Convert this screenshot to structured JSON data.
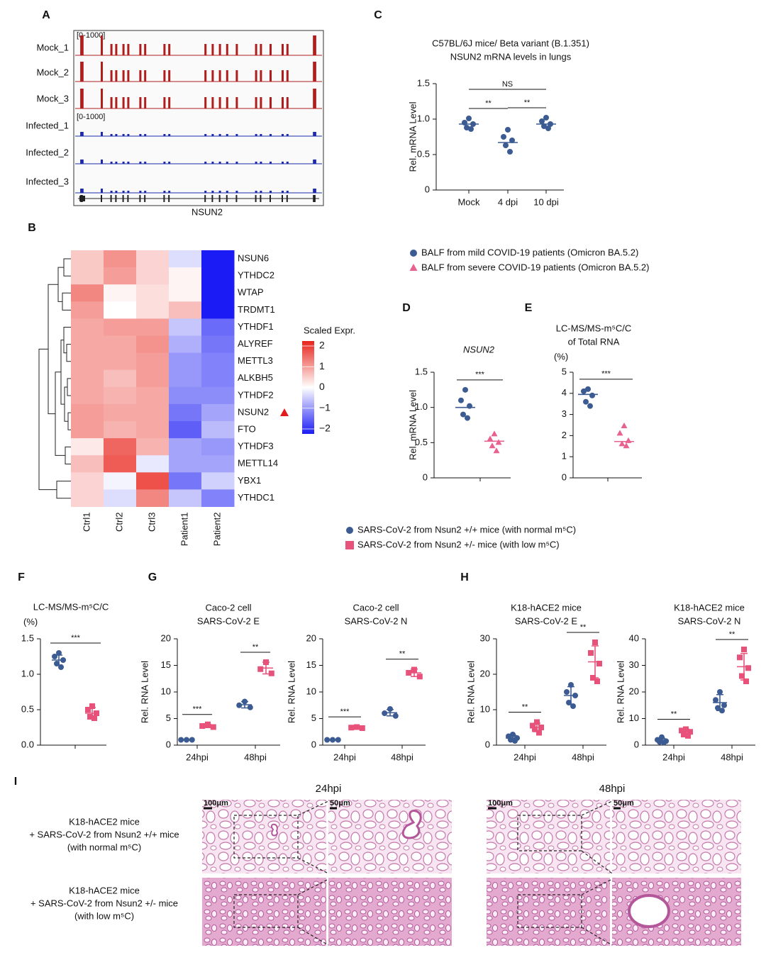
{
  "panel_labels": [
    "A",
    "B",
    "C",
    "D",
    "E",
    "F",
    "G",
    "H",
    "I"
  ],
  "tracks": {
    "scale_labels": [
      "[0-1000]",
      "[0-1000]"
    ],
    "samples": [
      "Mock_1",
      "Mock_2",
      "Mock_3",
      "Infected_1",
      "Infected_2",
      "Infected_3"
    ],
    "gene": "NSUN2"
  },
  "chart_data": [
    {
      "type": "heatmap",
      "rows": [
        "NSUN6",
        "YTHDC2",
        "WTAP",
        "TRDMT1",
        "YTHDF1",
        "ALYREF",
        "METTL3",
        "ALKBH5",
        "YTHDF2",
        "NSUN2",
        "FTO",
        "YTHDF3",
        "METTL14",
        "YBX1",
        "YTHDC1"
      ],
      "columns": [
        "Ctrl1",
        "Ctrl2",
        "Ctrl3",
        "Patient1",
        "Patient2"
      ],
      "values": [
        [
          0.5,
          1.0,
          0.4,
          -0.3,
          -2
        ],
        [
          0.5,
          0.9,
          0.4,
          0.1,
          -2
        ],
        [
          1.1,
          0.1,
          0.3,
          0.1,
          -2
        ],
        [
          0.9,
          0.0,
          0.3,
          0.6,
          -2
        ],
        [
          0.8,
          0.9,
          0.9,
          -0.5,
          -1.3
        ],
        [
          0.8,
          0.8,
          1.0,
          -0.7,
          -1.2
        ],
        [
          0.8,
          0.8,
          0.9,
          -0.9,
          -1.1
        ],
        [
          0.8,
          0.6,
          0.9,
          -0.9,
          -1.1
        ],
        [
          0.8,
          0.7,
          0.8,
          -1.0,
          -1.0
        ],
        [
          0.9,
          0.8,
          0.8,
          -1.2,
          -0.8
        ],
        [
          0.9,
          0.7,
          0.8,
          -1.4,
          -0.6
        ],
        [
          0.2,
          1.4,
          0.7,
          -0.8,
          -0.9
        ],
        [
          0.6,
          1.5,
          -0.2,
          -0.8,
          -0.8
        ],
        [
          0.4,
          -0.1,
          1.6,
          -1.2,
          -0.4
        ],
        [
          0.4,
          -0.3,
          1.1,
          -0.5,
          -1.1
        ]
      ],
      "colorbar_title": "Scaled Expr.",
      "clim": [
        -2,
        2
      ],
      "colorbar_ticks": [
        2,
        1,
        0,
        {
          "value": -1,
          "label": "−1"
        },
        {
          "value": -2,
          "label": "−2"
        }
      ]
    },
    {
      "type": "dot",
      "title": [
        "C57BL/6J mice/ Beta variant (B.1.351)",
        "NSUN2 mRNA levels in lungs"
      ],
      "y_label": "Rel. mRNA Level",
      "categories": [
        "Mock",
        "4 dpi",
        "10 dpi"
      ],
      "ylim": [
        0,
        1.5
      ],
      "yticks": [
        0,
        0.5,
        {
          "value": 1,
          "label": "1.0"
        },
        1.5
      ],
      "series": [
        {
          "color": "#3b5b92",
          "marker": "circle",
          "values": [
            [
              1.01,
              0.95,
              0.93,
              0.88,
              0.86
            ],
            [
              0.85,
              0.75,
              0.7,
              0.63,
              0.54
            ],
            [
              1.02,
              0.97,
              0.93,
              0.9,
              0.87
            ]
          ],
          "center_line": [
            0.93,
            0.67,
            0.93
          ]
        }
      ],
      "significance": [
        {
          "label": "**",
          "between": [
            "Mock",
            "4 dpi"
          ]
        },
        {
          "label": "**",
          "between": [
            "4 dpi",
            "10 dpi"
          ]
        },
        {
          "label": "NS",
          "between": [
            "Mock",
            "10 dpi"
          ]
        }
      ]
    },
    {
      "type": "dot",
      "title": [
        "NSUN2"
      ],
      "y_label": "Rel. mRNA Level",
      "ylim": [
        0,
        1.5
      ],
      "yticks": [
        0,
        0.5,
        {
          "value": 1,
          "label": "1.0"
        },
        1.5
      ],
      "series": [
        {
          "color": "#3b5b92",
          "marker": "circle",
          "values": [
            [
              1.25,
              1.1,
              1.02,
              0.9,
              0.85
            ]
          ],
          "center_line": [
            1.0
          ]
        },
        {
          "color": "#e8628f",
          "marker": "triangle",
          "values": [
            [
              0.62,
              0.55,
              0.5,
              0.45,
              0.38
            ]
          ],
          "center_line": [
            0.52
          ]
        }
      ],
      "significance": [
        {
          "label": "***"
        }
      ]
    },
    {
      "type": "dot",
      "title": [
        "LC-MS/MS-m⁵C/C",
        "of Total RNA"
      ],
      "unit": "(%)",
      "ylim": [
        0,
        5
      ],
      "yticks": [
        0,
        1,
        2,
        3,
        4,
        5
      ],
      "series": [
        {
          "color": "#3b5b92",
          "marker": "circle",
          "values": [
            [
              4.2,
              4.1,
              3.9,
              3.6,
              3.4
            ]
          ],
          "center_line": [
            3.95
          ]
        },
        {
          "color": "#e8628f",
          "marker": "triangle",
          "values": [
            [
              2.45,
              2.1,
              1.75,
              1.6,
              1.5
            ]
          ],
          "center_line": [
            1.72
          ]
        }
      ],
      "significance": [
        {
          "label": "***"
        }
      ]
    },
    {
      "type": "dot",
      "title": [
        "LC-MS/MS-m⁵C/C"
      ],
      "unit": "(%)",
      "ylim": [
        0,
        1.5
      ],
      "yticks": [
        {
          "value": 0,
          "label": "0.0"
        },
        0.5,
        {
          "value": 1,
          "label": "1.0"
        },
        1.5
      ],
      "series": [
        {
          "color": "#3b5b92",
          "marker": "circle",
          "values": [
            [
              1.3,
              1.25,
              1.2,
              1.15,
              1.1
            ]
          ],
          "center_line": [
            1.2
          ],
          "sd": [
            0.07
          ]
        },
        {
          "color": "#e8527a",
          "marker": "square",
          "values": [
            [
              0.55,
              0.5,
              0.45,
              0.4,
              0.38
            ]
          ],
          "center_line": [
            0.45
          ],
          "sd": [
            0.08
          ]
        }
      ],
      "significance": [
        {
          "label": "***"
        }
      ]
    },
    {
      "type": "dot",
      "title": [
        "Caco-2 cell",
        "SARS-CoV-2 E"
      ],
      "y_label": "Rel. RNA Level",
      "categories": [
        "24hpi",
        "48hpi"
      ],
      "ylim": [
        0,
        20
      ],
      "yticks": [
        0,
        5,
        10,
        15,
        20
      ],
      "series": [
        {
          "color": "#3b5b92",
          "marker": "circle",
          "values": [
            [
              1,
              1,
              1
            ],
            [
              8.2,
              7.5,
              7.1
            ]
          ],
          "center_line": [
            1,
            7.6
          ],
          "sd": [
            0.05,
            0.6
          ]
        },
        {
          "color": "#e8527a",
          "marker": "square",
          "values": [
            [
              3.9,
              3.6,
              3.4
            ],
            [
              15.6,
              14.3,
              13.5
            ]
          ],
          "center_line": [
            3.6,
            14.5
          ],
          "sd": [
            0.3,
            1.1
          ]
        }
      ],
      "significance": [
        {
          "label": "***",
          "at": "24hpi"
        },
        {
          "label": "**",
          "at": "48hpi"
        }
      ]
    },
    {
      "type": "dot",
      "title": [
        "Caco-2 cell",
        "SARS-CoV-2 N"
      ],
      "y_label": "Rel. RNA Level",
      "categories": [
        "24hpi",
        "48hpi"
      ],
      "ylim": [
        0,
        20
      ],
      "yticks": [
        0,
        5,
        10,
        15,
        20
      ],
      "series": [
        {
          "color": "#3b5b92",
          "marker": "circle",
          "values": [
            [
              1,
              1,
              1
            ],
            [
              6.8,
              6,
              5.5
            ]
          ],
          "center_line": [
            1,
            6.1
          ],
          "sd": [
            0.05,
            0.6
          ]
        },
        {
          "color": "#e8527a",
          "marker": "square",
          "values": [
            [
              3.4,
              3.3,
              3.2
            ],
            [
              14.2,
              13.6,
              12.9
            ]
          ],
          "center_line": [
            3.3,
            13.6
          ],
          "sd": [
            0.15,
            0.7
          ]
        }
      ],
      "significance": [
        {
          "label": "***",
          "at": "24hpi"
        },
        {
          "label": "**",
          "at": "48hpi"
        }
      ]
    },
    {
      "type": "dot",
      "title": [
        "K18-hACE2 mice",
        "SARS-CoV-2 E"
      ],
      "y_label": "Rel. RNA Level",
      "categories": [
        "24hpi",
        "48hpi"
      ],
      "ylim": [
        0,
        30
      ],
      "yticks": [
        0,
        10,
        20,
        30
      ],
      "series": [
        {
          "color": "#3b5b92",
          "marker": "circle",
          "values": [
            [
              3,
              2.5,
              2,
              1.5,
              1.2
            ],
            [
              17,
              15,
              14,
              12,
              11
            ]
          ],
          "center_line": [
            2,
            14
          ],
          "sd": [
            0.8,
            2.5
          ]
        },
        {
          "color": "#e8527a",
          "marker": "square",
          "values": [
            [
              6.5,
              5.5,
              5,
              4.5,
              3.5
            ],
            [
              29,
              26,
              23,
              19,
              18
            ]
          ],
          "center_line": [
            5,
            23.5
          ],
          "sd": [
            1.2,
            4.5
          ]
        }
      ],
      "significance": [
        {
          "label": "**",
          "at": "24hpi"
        },
        {
          "label": "**",
          "at": "48hpi"
        }
      ]
    },
    {
      "type": "dot",
      "title": [
        "K18-hACE2 mice",
        "SARS-CoV-2 N"
      ],
      "y_label": "Rel. RNA Level",
      "categories": [
        "24hpi",
        "48hpi"
      ],
      "ylim": [
        0,
        40
      ],
      "yticks": [
        0,
        10,
        20,
        30,
        40
      ],
      "series": [
        {
          "color": "#3b5b92",
          "marker": "circle",
          "values": [
            [
              3,
              2,
              1.5,
              1.2,
              1
            ],
            [
              20,
              17,
              15,
              14,
              13
            ]
          ],
          "center_line": [
            1.8,
            16
          ],
          "sd": [
            0.8,
            3
          ]
        },
        {
          "color": "#e8527a",
          "marker": "square",
          "values": [
            [
              6,
              5.5,
              5,
              4,
              3.5
            ],
            [
              36,
              33,
              29,
              26,
              24
            ]
          ],
          "center_line": [
            4.8,
            29.5
          ],
          "sd": [
            1.2,
            5
          ]
        }
      ],
      "significance": [
        {
          "label": "**",
          "at": "24hpi"
        },
        {
          "label": "**",
          "at": "48hpi"
        }
      ]
    }
  ],
  "legends": [
    {
      "entries": [
        {
          "label": "BALF from mild COVID-19 patients (Omicron BA.5.2)",
          "color": "#3b5b92",
          "marker": "circle"
        },
        {
          "label": "BALF from severe COVID-19 patients (Omicron BA.5.2)",
          "color": "#e8628f",
          "marker": "triangle"
        }
      ]
    },
    {
      "entries": [
        {
          "label": "SARS-CoV-2 from Nsun2 +/+ mice (with normal m⁵C)",
          "color": "#3b5b92",
          "marker": "circle"
        },
        {
          "label": "SARS-CoV-2 from Nsun2 +/- mice (with low m⁵C)",
          "color": "#e8527a",
          "marker": "square"
        }
      ]
    }
  ],
  "histology": {
    "time_points": [
      "24hpi",
      "48hpi"
    ],
    "scale_bars": [
      "100μm",
      "50μm"
    ],
    "row_labels": [
      [
        "K18-hACE2 mice",
        "+ SARS-CoV-2 from Nsun2 +/+ mice",
        "(with normal m⁵C)"
      ],
      [
        "K18-hACE2 mice",
        "+ SARS-CoV-2 from Nsun2 +/- mice",
        "(with low m⁵C)"
      ]
    ]
  }
}
